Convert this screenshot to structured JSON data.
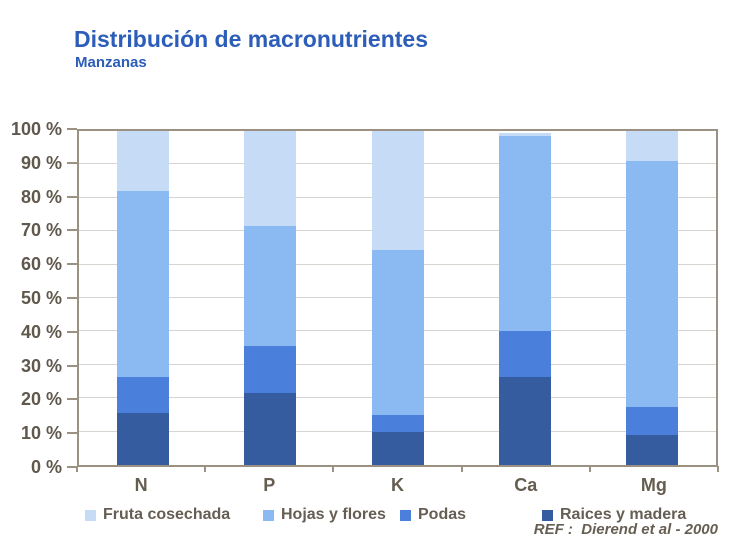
{
  "chart_data": {
    "type": "bar",
    "stacked": true,
    "title": "Distribución de macronutrientes",
    "subtitle": "Manzanas",
    "categories": [
      "N",
      "P",
      "K",
      "Ca",
      "Mg"
    ],
    "series": [
      {
        "name": "Raices y madera",
        "color": "#355c9e",
        "values": [
          15.5,
          21.5,
          10,
          26.5,
          9
        ]
      },
      {
        "name": "Podas",
        "color": "#4a80db",
        "values": [
          11,
          14,
          5,
          13.5,
          8.5
        ]
      },
      {
        "name": "Hojas y flores",
        "color": "#8bb9f1",
        "values": [
          55.5,
          36,
          49.5,
          58.5,
          73.5
        ]
      },
      {
        "name": "Fruta cosechada",
        "color": "#c6dcf6",
        "values": [
          18,
          28.5,
          35.5,
          1,
          9
        ]
      }
    ],
    "stack_order": "bottom-to-top",
    "legend": [
      "Fruta cosechada",
      "Hojas y flores",
      "Podas",
      "Raices y madera"
    ],
    "legend_position": "bottom",
    "ylim": [
      0,
      100
    ],
    "ytick_step": 10,
    "ytick_suffix": " %",
    "grid": true,
    "annotation": "REF :  Dierend et al - 2000"
  },
  "colors": {
    "title_text": "#2c5db8",
    "axis_text": "#60584c",
    "legend_text": "#665e52",
    "frame": "#9b9183",
    "gridline": "#d8d5d0"
  }
}
